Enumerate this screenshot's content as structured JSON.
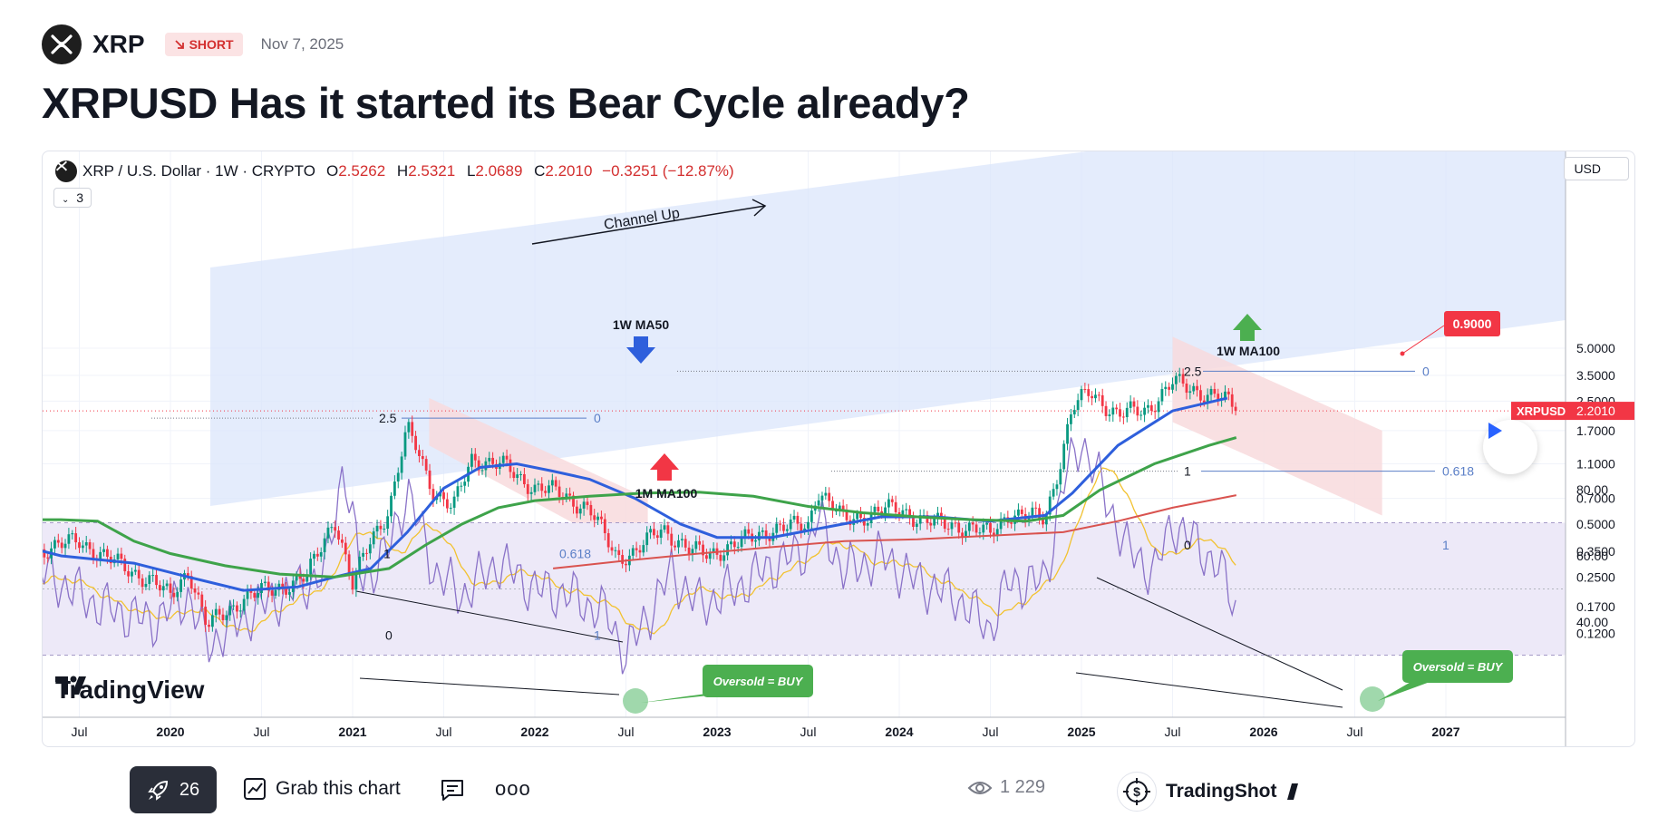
{
  "header": {
    "symbol": "XRP",
    "badge_label": "SHORT",
    "date": "Nov 7, 2025",
    "title": "XRPUSD Has it started its Bear Cycle already?"
  },
  "chart": {
    "legend": {
      "name": "XRP / U.S. Dollar · 1W · CRYPTO",
      "o_key": "O",
      "o_val": "2.5262",
      "h_key": "H",
      "h_val": "2.5321",
      "l_key": "L",
      "l_val": "2.0689",
      "c_key": "C",
      "c_val": "2.2010",
      "change": "−0.3251 (−12.87%)"
    },
    "indicator_count": "3",
    "currency": "USD",
    "brand": "TradingView",
    "colors": {
      "ma50": "#2e5fdc",
      "ma100_green": "#3ea34a",
      "ma100_red": "#d9534f",
      "rsi": "#8a72c8",
      "rsi_ma": "#f2c230",
      "channel": "#dbe5fb",
      "bear_box": "#f8dadd",
      "buy": "#4caf50",
      "price_tag": "#f23645"
    }
  },
  "chart_data": {
    "type": "candlestick",
    "price_scale": "log",
    "price_ticks": [
      "5.0000",
      "3.5000",
      "2.5000",
      "1.7000",
      "1.1000",
      "0.7000",
      "0.5000",
      "0.3500",
      "0.2500",
      "0.1700",
      "0.1200"
    ],
    "rsi_ticks": [
      "80.00",
      "60.00",
      "40.00"
    ],
    "time_ticks": [
      "Jul",
      "2020",
      "Jul",
      "2021",
      "Jul",
      "2022",
      "Jul",
      "2023",
      "Jul",
      "2024",
      "Jul",
      "2025",
      "Jul",
      "2026",
      "Jul",
      "2027"
    ],
    "last_price": {
      "label": "XRPUSD",
      "value": "2.2010"
    },
    "target": "0.9000",
    "series": [
      {
        "name": "1W MA50"
      },
      {
        "name": "1W MA100"
      },
      {
        "name": "1M MA100"
      }
    ],
    "annotations": {
      "channel": "Channel Up",
      "ma50": "1W MA50",
      "ma100_1w": "1W MA100",
      "ma100_1m": "1M MA100",
      "oversold_1": "Oversold = BUY",
      "oversold_2": "Oversold = BUY"
    },
    "fib_labels": {
      "c1_top": "2.5",
      "c1_top_r": "0",
      "c1_mid": "1",
      "c1_mid_r": "0.618",
      "c1_bot": "0",
      "c1_bot_r": "1",
      "c2_top": "2.5",
      "c2_top_r": "0",
      "c2_mid": "1",
      "c2_mid_r": "0.618",
      "c2_bot": "0",
      "c2_bot_r": "1"
    }
  },
  "footer": {
    "boosts": "26",
    "grab_label": "Grab this chart",
    "more": "ooo",
    "views": "1 229",
    "author": "TradingShot"
  }
}
